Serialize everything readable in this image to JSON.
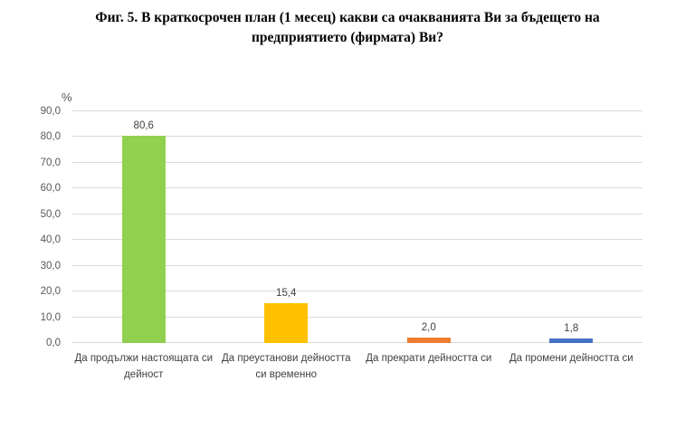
{
  "title_lines": [
    "Фиг. 5. В краткосрочен план (1 месец) какви са очакванията Ви за бъдещето на",
    "предприятието (фирмата) Ви?"
  ],
  "chart_data": {
    "type": "bar",
    "title": "Фиг. 5. В краткосрочен план (1 месец) какви са очакванията Ви за бъдещето на предприятието (фирмата) Ви?",
    "categories": [
      "Да продължи настоящата си дейност",
      "Да преустанови дейността си временно",
      "Да прекрати дейността си",
      "Да промени дейността си"
    ],
    "values": [
      80.6,
      15.4,
      2.0,
      1.8
    ],
    "value_labels": [
      "80,6",
      "15,4",
      "2,0",
      "1,8"
    ],
    "bar_colors": [
      "#92D050",
      "#FFC000",
      "#ED7D31",
      "#4472C4"
    ],
    "xlabel": "",
    "ylabel": "%",
    "ylim": [
      0,
      90
    ],
    "ytick_step": 10,
    "ytick_labels": [
      "0,0",
      "10,0",
      "20,0",
      "30,0",
      "40,0",
      "50,0",
      "60,0",
      "70,0",
      "80,0",
      "90,0"
    ],
    "grid": true,
    "legend": false,
    "decimal_separator": ","
  },
  "colors": {
    "gridline": "#d9d9d9",
    "axis_text": "#595959",
    "value_text": "#404040",
    "title_text": "#000000"
  }
}
